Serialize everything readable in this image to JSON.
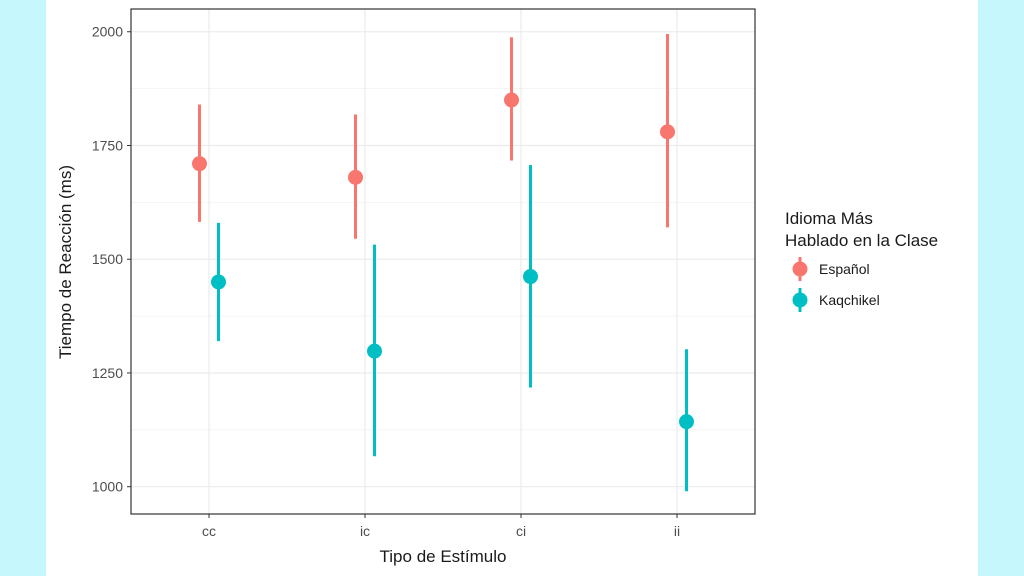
{
  "chart_data": {
    "type": "pointrange",
    "xlabel": "Tipo de Estímulo",
    "ylabel": "Tiempo de Reacción (ms)",
    "categories": [
      "cc",
      "ic",
      "ci",
      "ii"
    ],
    "y_ticks": [
      "1000",
      "1250",
      "1500",
      "1750",
      "2000"
    ],
    "ylim": [
      940,
      2050
    ],
    "grid": true,
    "legend": {
      "title_line1": "Idioma Más",
      "title_line2": "Hablado en la Clase",
      "placement": "right"
    },
    "series": [
      {
        "name": "Español",
        "color": "#f8766d",
        "values": [
          1710,
          1680,
          1850,
          1780
        ],
        "lower": [
          1582,
          1545,
          1717,
          1570
        ],
        "upper": [
          1840,
          1818,
          1988,
          1995
        ]
      },
      {
        "name": "Kaqchikel",
        "color": "#00bfc4",
        "values": [
          1450,
          1298,
          1462,
          1143
        ],
        "lower": [
          1320,
          1067,
          1218,
          990
        ],
        "upper": [
          1580,
          1532,
          1707,
          1302
        ]
      }
    ]
  }
}
